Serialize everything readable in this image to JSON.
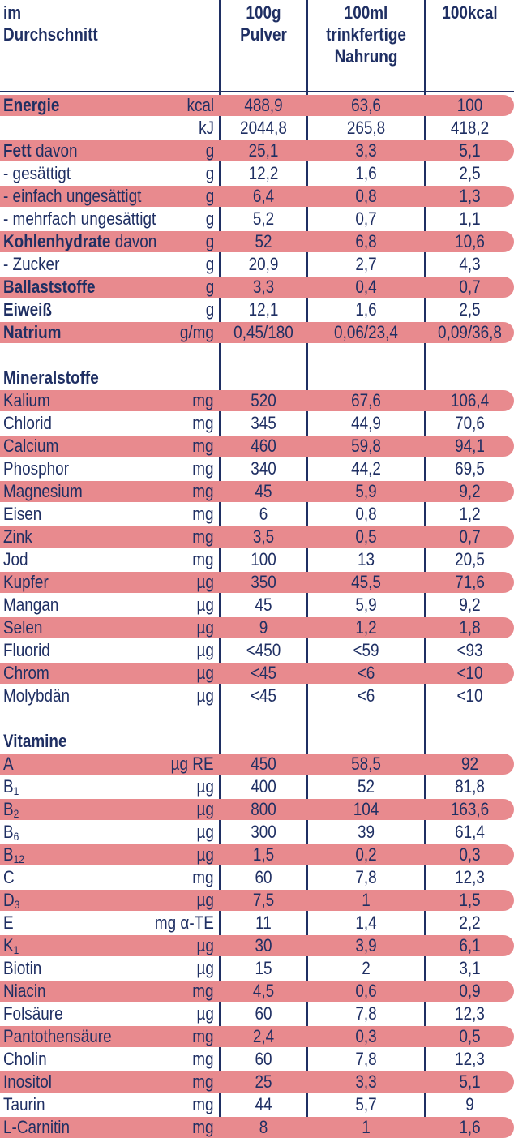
{
  "header": {
    "col0": [
      "im",
      "Durchschnitt"
    ],
    "col1": [
      "100g",
      "Pulver"
    ],
    "col2": [
      "100ml",
      "trinkfertige",
      "Nahrung"
    ],
    "col3": [
      "100kcal"
    ]
  },
  "sections": [
    {
      "title": "",
      "rows": [
        {
          "label": "Energie",
          "bold": "Energie",
          "rest": "",
          "unit": "kcal",
          "v1": "488,9",
          "v2": "63,6",
          "v3": "100",
          "band": true
        },
        {
          "label": "",
          "bold": "",
          "rest": "",
          "unit": "kJ",
          "v1": "2044,8",
          "v2": "265,8",
          "v3": "418,2",
          "band": false
        },
        {
          "label": "Fett davon",
          "bold": "Fett",
          "rest": " davon",
          "unit": "g",
          "v1": "25,1",
          "v2": "3,3",
          "v3": "5,1",
          "band": true
        },
        {
          "label": "- gesättigt",
          "bold": "",
          "rest": "- gesättigt",
          "unit": "g",
          "v1": "12,2",
          "v2": "1,6",
          "v3": "2,5",
          "band": false
        },
        {
          "label": "- einfach ungesättigt",
          "bold": "",
          "rest": "- einfach ungesättigt",
          "unit": "g",
          "v1": "6,4",
          "v2": "0,8",
          "v3": "1,3",
          "band": true
        },
        {
          "label": "- mehrfach ungesättigt",
          "bold": "",
          "rest": "- mehrfach ungesättigt",
          "unit": "g",
          "v1": "5,2",
          "v2": "0,7",
          "v3": "1,1",
          "band": false
        },
        {
          "label": "Kohlenhydrate davon",
          "bold": "Kohlenhydrate",
          "rest": " davon",
          "unit": "g",
          "v1": "52",
          "v2": "6,8",
          "v3": "10,6",
          "band": true
        },
        {
          "label": "- Zucker",
          "bold": "",
          "rest": "- Zucker",
          "unit": "g",
          "v1": "20,9",
          "v2": "2,7",
          "v3": "4,3",
          "band": false
        },
        {
          "label": "Ballaststoffe",
          "bold": "Ballaststoffe",
          "rest": "",
          "unit": "g",
          "v1": "3,3",
          "v2": "0,4",
          "v3": "0,7",
          "band": true
        },
        {
          "label": "Eiweiß",
          "bold": "Eiweiß",
          "rest": "",
          "unit": "g",
          "v1": "12,1",
          "v2": "1,6",
          "v3": "2,5",
          "band": false
        },
        {
          "label": "Natrium",
          "bold": "Natrium",
          "rest": "",
          "unit": "g/mg",
          "v1": "0,45/180",
          "v2": "0,06/23,4",
          "v3": "0,09/36,8",
          "band": true
        }
      ]
    },
    {
      "title": "Mineralstoffe",
      "rows": [
        {
          "label": "Kalium",
          "bold": "",
          "rest": "Kalium",
          "unit": "mg",
          "v1": "520",
          "v2": "67,6",
          "v3": "106,4",
          "band": true
        },
        {
          "label": "Chlorid",
          "bold": "",
          "rest": "Chlorid",
          "unit": "mg",
          "v1": "345",
          "v2": "44,9",
          "v3": "70,6",
          "band": false
        },
        {
          "label": "Calcium",
          "bold": "",
          "rest": "Calcium",
          "unit": "mg",
          "v1": "460",
          "v2": "59,8",
          "v3": "94,1",
          "band": true
        },
        {
          "label": "Phosphor",
          "bold": "",
          "rest": "Phosphor",
          "unit": "mg",
          "v1": "340",
          "v2": "44,2",
          "v3": "69,5",
          "band": false
        },
        {
          "label": "Magnesium",
          "bold": "",
          "rest": "Magnesium",
          "unit": "mg",
          "v1": "45",
          "v2": "5,9",
          "v3": "9,2",
          "band": true
        },
        {
          "label": "Eisen",
          "bold": "",
          "rest": "Eisen",
          "unit": "mg",
          "v1": "6",
          "v2": "0,8",
          "v3": "1,2",
          "band": false
        },
        {
          "label": "Zink",
          "bold": "",
          "rest": "Zink",
          "unit": "mg",
          "v1": "3,5",
          "v2": "0,5",
          "v3": "0,7",
          "band": true
        },
        {
          "label": "Jod",
          "bold": "",
          "rest": "Jod",
          "unit": "mg",
          "v1": "100",
          "v2": "13",
          "v3": "20,5",
          "band": false
        },
        {
          "label": "Kupfer",
          "bold": "",
          "rest": "Kupfer",
          "unit": "µg",
          "v1": "350",
          "v2": "45,5",
          "v3": "71,6",
          "band": true
        },
        {
          "label": "Mangan",
          "bold": "",
          "rest": "Mangan",
          "unit": "µg",
          "v1": "45",
          "v2": "5,9",
          "v3": "9,2",
          "band": false
        },
        {
          "label": "Selen",
          "bold": "",
          "rest": "Selen",
          "unit": "µg",
          "v1": "9",
          "v2": "1,2",
          "v3": "1,8",
          "band": true
        },
        {
          "label": "Fluorid",
          "bold": "",
          "rest": "Fluorid",
          "unit": "µg",
          "v1": "<450",
          "v2": "<59",
          "v3": "<93",
          "band": false
        },
        {
          "label": "Chrom",
          "bold": "",
          "rest": "Chrom",
          "unit": "µg",
          "v1": "<45",
          "v2": "<6",
          "v3": "<10",
          "band": true
        },
        {
          "label": "Molybdän",
          "bold": "",
          "rest": "Molybdän",
          "unit": "µg",
          "v1": "<45",
          "v2": "<6",
          "v3": "<10",
          "band": false
        }
      ]
    },
    {
      "title": "Vitamine",
      "rows": [
        {
          "label": "A",
          "bold": "",
          "rest": "A",
          "sub": "",
          "unit": "µg RE",
          "v1": "450",
          "v2": "58,5",
          "v3": "92",
          "band": true
        },
        {
          "label": "B1",
          "bold": "",
          "rest": "B",
          "sub": "1",
          "unit": "µg",
          "v1": "400",
          "v2": "52",
          "v3": "81,8",
          "band": false
        },
        {
          "label": "B2",
          "bold": "",
          "rest": "B",
          "sub": "2",
          "unit": "µg",
          "v1": "800",
          "v2": "104",
          "v3": "163,6",
          "band": true
        },
        {
          "label": "B6",
          "bold": "",
          "rest": "B",
          "sub": "6",
          "unit": "µg",
          "v1": "300",
          "v2": "39",
          "v3": "61,4",
          "band": false
        },
        {
          "label": "B12",
          "bold": "",
          "rest": "B",
          "sub": "12",
          "unit": "µg",
          "v1": "1,5",
          "v2": "0,2",
          "v3": "0,3",
          "band": true
        },
        {
          "label": "C",
          "bold": "",
          "rest": "C",
          "sub": "",
          "unit": "mg",
          "v1": "60",
          "v2": "7,8",
          "v3": "12,3",
          "band": false
        },
        {
          "label": "D3",
          "bold": "",
          "rest": "D",
          "sub": "3",
          "unit": "µg",
          "v1": "7,5",
          "v2": "1",
          "v3": "1,5",
          "band": true
        },
        {
          "label": "E",
          "bold": "",
          "rest": "E",
          "sub": "",
          "unit": "mg α-TE",
          "v1": "11",
          "v2": "1,4",
          "v3": "2,2",
          "band": false
        },
        {
          "label": "K1",
          "bold": "",
          "rest": "K",
          "sub": "1",
          "unit": "µg",
          "v1": "30",
          "v2": "3,9",
          "v3": "6,1",
          "band": true
        },
        {
          "label": "Biotin",
          "bold": "",
          "rest": "Biotin",
          "sub": "",
          "unit": "µg",
          "v1": "15",
          "v2": "2",
          "v3": "3,1",
          "band": false
        },
        {
          "label": "Niacin",
          "bold": "",
          "rest": "Niacin",
          "sub": "",
          "unit": "mg",
          "v1": "4,5",
          "v2": "0,6",
          "v3": "0,9",
          "band": true
        },
        {
          "label": "Folsäure",
          "bold": "",
          "rest": "Folsäure",
          "sub": "",
          "unit": "µg",
          "v1": "60",
          "v2": "7,8",
          "v3": "12,3",
          "band": false
        },
        {
          "label": "Pantothensäure",
          "bold": "",
          "rest": "Pantothensäure",
          "sub": "",
          "unit": "mg",
          "v1": "2,4",
          "v2": "0,3",
          "v3": "0,5",
          "band": true
        },
        {
          "label": "Cholin",
          "bold": "",
          "rest": "Cholin",
          "sub": "",
          "unit": "mg",
          "v1": "60",
          "v2": "7,8",
          "v3": "12,3",
          "band": false
        },
        {
          "label": "Inositol",
          "bold": "",
          "rest": "Inositol",
          "sub": "",
          "unit": "mg",
          "v1": "25",
          "v2": "3,3",
          "v3": "5,1",
          "band": true
        },
        {
          "label": "Taurin",
          "bold": "",
          "rest": "Taurin",
          "sub": "",
          "unit": "mg",
          "v1": "44",
          "v2": "5,7",
          "v3": "9",
          "band": false
        },
        {
          "label": "L-Carnitin",
          "bold": "",
          "rest": "L-Carnitin",
          "sub": "",
          "unit": "mg",
          "v1": "8",
          "v2": "1",
          "v3": "1,6",
          "band": true
        }
      ]
    }
  ],
  "colors": {
    "text": "#1f2f63",
    "band": "#e88a8e"
  }
}
